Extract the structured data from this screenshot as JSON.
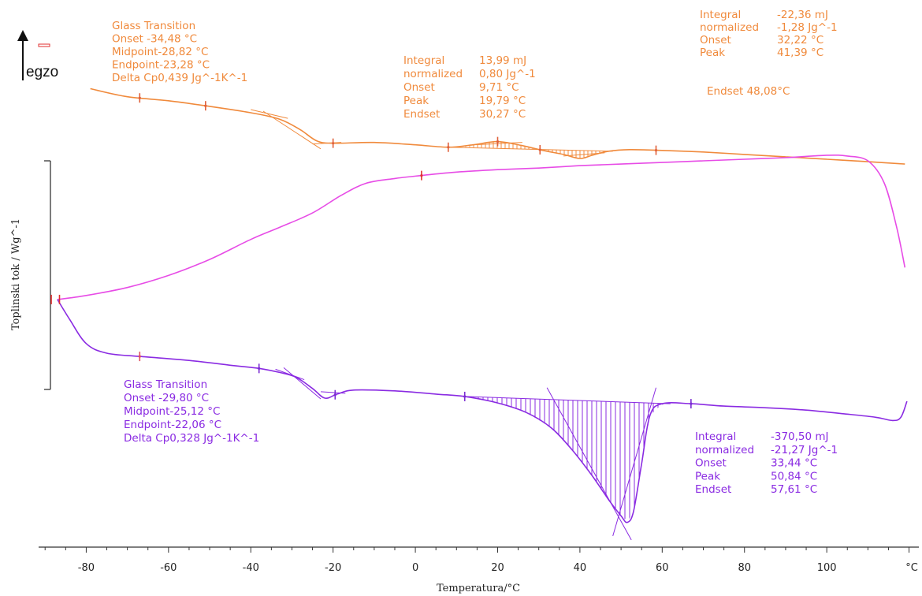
{
  "chart_data": {
    "type": "line",
    "xlabel": "Temperatura/°C",
    "ylabel": "Toplinski tok / Wg^-1",
    "x_unit": "°C",
    "xlim": [
      -91,
      122
    ],
    "xticks": [
      -80,
      -60,
      -40,
      -20,
      0,
      20,
      40,
      60,
      80,
      100
    ],
    "exo_label": "egzo",
    "colors": {
      "orange": "#f08a3c",
      "magenta": "#e74ce6",
      "purple": "#8a2be2"
    },
    "series": [
      {
        "key": "orange",
        "points": [
          [
            -79,
            -1.32
          ],
          [
            -70,
            -1.42
          ],
          [
            -60,
            -1.47
          ],
          [
            -50,
            -1.54
          ],
          [
            -40,
            -1.62
          ],
          [
            -33,
            -1.7
          ],
          [
            -28,
            -1.83
          ],
          [
            -24,
            -1.97
          ],
          [
            -20,
            -2.0
          ],
          [
            -10,
            -1.99
          ],
          [
            0,
            -2.02
          ],
          [
            8,
            -2.05
          ],
          [
            14,
            -2.02
          ],
          [
            20,
            -1.98
          ],
          [
            26,
            -2.03
          ],
          [
            31,
            -2.09
          ],
          [
            36,
            -2.14
          ],
          [
            40,
            -2.19
          ],
          [
            43,
            -2.15
          ],
          [
            47,
            -2.1
          ],
          [
            52,
            -2.08
          ],
          [
            60,
            -2.09
          ],
          [
            70,
            -2.11
          ],
          [
            80,
            -2.14
          ],
          [
            90,
            -2.17
          ],
          [
            100,
            -2.2
          ],
          [
            110,
            -2.23
          ],
          [
            119,
            -2.26
          ]
        ]
      },
      {
        "key": "magenta",
        "points": [
          [
            -87,
            -3.95
          ],
          [
            -80,
            -3.9
          ],
          [
            -70,
            -3.8
          ],
          [
            -60,
            -3.65
          ],
          [
            -50,
            -3.45
          ],
          [
            -40,
            -3.2
          ],
          [
            -33,
            -3.05
          ],
          [
            -25,
            -2.87
          ],
          [
            -18,
            -2.65
          ],
          [
            -12,
            -2.5
          ],
          [
            -5,
            -2.44
          ],
          [
            2,
            -2.4
          ],
          [
            10,
            -2.36
          ],
          [
            20,
            -2.33
          ],
          [
            30,
            -2.31
          ],
          [
            40,
            -2.28
          ],
          [
            50,
            -2.26
          ],
          [
            60,
            -2.24
          ],
          [
            70,
            -2.22
          ],
          [
            80,
            -2.2
          ],
          [
            90,
            -2.18
          ],
          [
            100,
            -2.15
          ],
          [
            105,
            -2.16
          ],
          [
            110,
            -2.22
          ],
          [
            114,
            -2.5
          ],
          [
            117,
            -3.05
          ],
          [
            119,
            -3.55
          ]
        ]
      },
      {
        "key": "purple",
        "points": [
          [
            -87,
            -3.95
          ],
          [
            -84,
            -4.2
          ],
          [
            -80,
            -4.5
          ],
          [
            -75,
            -4.62
          ],
          [
            -67,
            -4.66
          ],
          [
            -55,
            -4.71
          ],
          [
            -45,
            -4.77
          ],
          [
            -38,
            -4.81
          ],
          [
            -33,
            -4.86
          ],
          [
            -29,
            -4.92
          ],
          [
            -25,
            -5.06
          ],
          [
            -22,
            -5.18
          ],
          [
            -19,
            -5.13
          ],
          [
            -15,
            -5.08
          ],
          [
            -5,
            -5.09
          ],
          [
            5,
            -5.13
          ],
          [
            12,
            -5.16
          ],
          [
            20,
            -5.24
          ],
          [
            27,
            -5.36
          ],
          [
            33,
            -5.55
          ],
          [
            38,
            -5.82
          ],
          [
            43,
            -6.15
          ],
          [
            47,
            -6.45
          ],
          [
            50,
            -6.65
          ],
          [
            51.5,
            -6.73
          ],
          [
            53,
            -6.6
          ],
          [
            55,
            -6.0
          ],
          [
            57,
            -5.4
          ],
          [
            60,
            -5.25
          ],
          [
            67,
            -5.25
          ],
          [
            75,
            -5.28
          ],
          [
            85,
            -5.3
          ],
          [
            95,
            -5.33
          ],
          [
            105,
            -5.38
          ],
          [
            112,
            -5.42
          ],
          [
            116,
            -5.46
          ],
          [
            118,
            -5.42
          ],
          [
            119.5,
            -5.22
          ]
        ]
      }
    ]
  },
  "annotations": {
    "orange_gt": [
      "Glass Transition",
      "Onset   -34,48 °C",
      "Midpoint-28,82 °C",
      "Endpoint-23,28 °C",
      "Delta Cp0,439 Jg^-1K^-1"
    ],
    "orange_peak1": [
      "Integral",
      "normalized",
      "Onset",
      "Peak",
      "Endset"
    ],
    "orange_peak1_values": [
      "13,99 mJ",
      "0,80 Jg^-1",
      "9,71 °C",
      "19,79 °C",
      "30,27 °C"
    ],
    "orange_peak2": [
      "Integral",
      "normalized",
      "Onset",
      "Peak"
    ],
    "orange_peak2_values": [
      "-22,36 mJ",
      "-1,28 Jg^-1",
      "32,22 °C",
      "41,39 °C"
    ],
    "orange_endset": "Endset     48,08°C",
    "purple_gt": [
      "Glass Transition",
      "Onset    -29,80 °C",
      "Midpoint-25,12 °C",
      "Endpoint-22,06 °C",
      "Delta Cp0,328 Jg^-1K^-1"
    ],
    "purple_peak": [
      "Integral",
      "normalized",
      "Onset",
      "Peak",
      "Endset"
    ],
    "purple_peak_values": [
      "-370,50 mJ",
      "-21,27 Jg^-1",
      "33,44 °C",
      "50,84 °C",
      "57,61 °C"
    ]
  }
}
